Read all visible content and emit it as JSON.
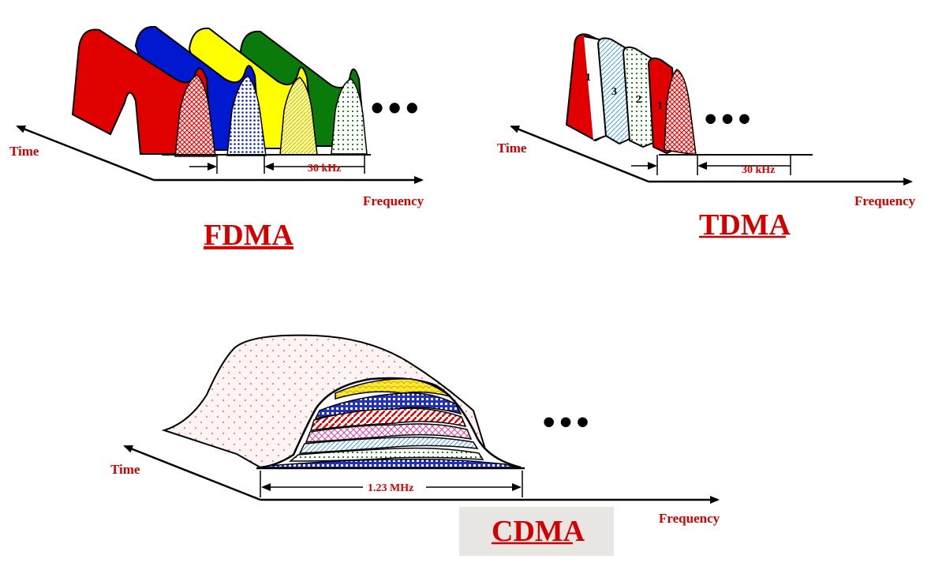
{
  "fdma": {
    "title": "FDMA",
    "time_label": "Time",
    "frequency_label": "Frequency",
    "bandwidth_label": "30 kHz",
    "continuation": "•••"
  },
  "tdma": {
    "title": "TDMA",
    "time_label": "Time",
    "frequency_label": "Frequency",
    "bandwidth_label": "30 kHz",
    "continuation": "•••",
    "slot_numbers": [
      "1",
      "3",
      "2",
      "1"
    ]
  },
  "cdma": {
    "title": "CDMA",
    "time_label": "Time",
    "frequency_label": "Frequency",
    "bandwidth_label": "1.23 MHz",
    "continuation": "•••"
  },
  "colors": {
    "label_red": "#d40000",
    "channel_red": "#e00000",
    "channel_blue": "#0018d0",
    "channel_yellow": "#ffff00",
    "channel_green": "#0a7a0a",
    "cdma_box": "#e8e6e3"
  }
}
